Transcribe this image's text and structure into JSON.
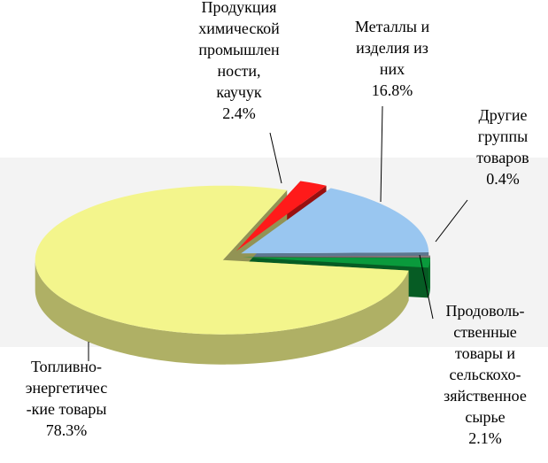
{
  "chart_data": {
    "type": "pie3d",
    "categories": [
      [
        "Продукция",
        "химической",
        "промышлен",
        "ности,",
        "каучук"
      ],
      [
        "Металлы и",
        "изделия из",
        "них"
      ],
      [
        "Другие",
        "группы",
        "товаров"
      ],
      [
        "Продоволь-",
        "ственные",
        "товары и",
        "сельскохо-",
        "зяйственное",
        "сырье"
      ],
      [
        "Топливно-",
        "энергетичес",
        "-кие товары"
      ]
    ],
    "values": [
      2.4,
      16.8,
      0.4,
      2.1,
      78.3
    ],
    "value_labels": [
      "2.4%",
      "16.8%",
      "0.4%",
      "2.1%",
      "78.3%"
    ],
    "colors": [
      "#ff1a1a",
      "#99c6f0",
      "#8a7d7d",
      "#0a9a3c",
      "#f3f58c"
    ]
  }
}
